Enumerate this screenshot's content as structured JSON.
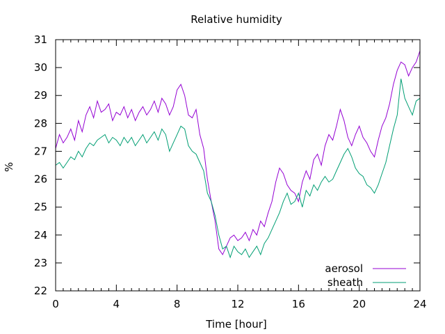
{
  "chart_data": {
    "type": "line",
    "title": "Relative humidity",
    "xlabel": "Time [hour]",
    "ylabel": "%",
    "xlim": [
      0,
      24
    ],
    "ylim": [
      22,
      31
    ],
    "xticks": [
      0,
      4,
      8,
      12,
      16,
      20,
      24
    ],
    "yticks": [
      22,
      23,
      24,
      25,
      26,
      27,
      28,
      29,
      30,
      31
    ],
    "grid": false,
    "legend_position": "bottom-right",
    "series": [
      {
        "name": "aerosol",
        "color": "#9400d3",
        "x": [
          0,
          0.25,
          0.5,
          0.75,
          1,
          1.25,
          1.5,
          1.75,
          2,
          2.25,
          2.5,
          2.75,
          3,
          3.25,
          3.5,
          3.75,
          4,
          4.25,
          4.5,
          4.75,
          5,
          5.25,
          5.5,
          5.75,
          6,
          6.25,
          6.5,
          6.75,
          7,
          7.25,
          7.5,
          7.75,
          8,
          8.25,
          8.5,
          8.75,
          9,
          9.25,
          9.5,
          9.75,
          10,
          10.25,
          10.5,
          10.75,
          11,
          11.25,
          11.5,
          11.75,
          12,
          12.25,
          12.5,
          12.75,
          13,
          13.25,
          13.5,
          13.75,
          14,
          14.25,
          14.5,
          14.75,
          15,
          15.25,
          15.5,
          15.75,
          16,
          16.25,
          16.5,
          16.75,
          17,
          17.25,
          17.5,
          17.75,
          18,
          18.25,
          18.5,
          18.75,
          19,
          19.25,
          19.5,
          19.75,
          20,
          20.25,
          20.5,
          20.75,
          21,
          21.25,
          21.5,
          21.75,
          22,
          22.25,
          22.5,
          22.75,
          23,
          23.25,
          23.5,
          23.75,
          24
        ],
        "values": [
          27.1,
          27.6,
          27.3,
          27.5,
          27.8,
          27.4,
          28.1,
          27.7,
          28.3,
          28.6,
          28.2,
          28.8,
          28.4,
          28.5,
          28.7,
          28.1,
          28.4,
          28.3,
          28.6,
          28.2,
          28.5,
          28.1,
          28.4,
          28.6,
          28.3,
          28.5,
          28.8,
          28.4,
          28.9,
          28.7,
          28.3,
          28.6,
          29.2,
          29.4,
          29.0,
          28.3,
          28.2,
          28.5,
          27.6,
          27.1,
          26.0,
          25.2,
          24.5,
          23.5,
          23.3,
          23.6,
          23.9,
          24.0,
          23.8,
          23.9,
          24.1,
          23.8,
          24.2,
          24.0,
          24.5,
          24.3,
          24.8,
          25.2,
          25.9,
          26.4,
          26.2,
          25.8,
          25.6,
          25.5,
          25.2,
          25.9,
          26.3,
          26.0,
          26.7,
          26.9,
          26.5,
          27.2,
          27.6,
          27.4,
          27.9,
          28.5,
          28.1,
          27.5,
          27.2,
          27.6,
          27.9,
          27.5,
          27.3,
          27.0,
          26.8,
          27.4,
          27.9,
          28.2,
          28.7,
          29.4,
          29.9,
          30.2,
          30.1,
          29.7,
          30.0,
          30.2,
          30.6
        ]
      },
      {
        "name": "sheath",
        "color": "#009e73",
        "x": [
          0,
          0.25,
          0.5,
          0.75,
          1,
          1.25,
          1.5,
          1.75,
          2,
          2.25,
          2.5,
          2.75,
          3,
          3.25,
          3.5,
          3.75,
          4,
          4.25,
          4.5,
          4.75,
          5,
          5.25,
          5.5,
          5.75,
          6,
          6.25,
          6.5,
          6.75,
          7,
          7.25,
          7.5,
          7.75,
          8,
          8.25,
          8.5,
          8.75,
          9,
          9.25,
          9.5,
          9.75,
          10,
          10.25,
          10.5,
          10.75,
          11,
          11.25,
          11.5,
          11.75,
          12,
          12.25,
          12.5,
          12.75,
          13,
          13.25,
          13.5,
          13.75,
          14,
          14.25,
          14.5,
          14.75,
          15,
          15.25,
          15.5,
          15.75,
          16,
          16.25,
          16.5,
          16.75,
          17,
          17.25,
          17.5,
          17.75,
          18,
          18.25,
          18.5,
          18.75,
          19,
          19.25,
          19.5,
          19.75,
          20,
          20.25,
          20.5,
          20.75,
          21,
          21.25,
          21.5,
          21.75,
          22,
          22.25,
          22.5,
          22.75,
          23,
          23.25,
          23.5,
          23.75,
          24
        ],
        "values": [
          26.5,
          26.6,
          26.4,
          26.6,
          26.8,
          26.7,
          27.0,
          26.8,
          27.1,
          27.3,
          27.2,
          27.4,
          27.5,
          27.6,
          27.3,
          27.5,
          27.4,
          27.2,
          27.5,
          27.3,
          27.5,
          27.2,
          27.4,
          27.6,
          27.3,
          27.5,
          27.7,
          27.4,
          27.8,
          27.6,
          27.0,
          27.3,
          27.6,
          27.9,
          27.8,
          27.2,
          27.0,
          26.9,
          26.6,
          26.3,
          25.5,
          25.2,
          24.7,
          24.0,
          23.5,
          23.6,
          23.2,
          23.6,
          23.4,
          23.3,
          23.5,
          23.2,
          23.4,
          23.6,
          23.3,
          23.7,
          23.9,
          24.2,
          24.5,
          24.8,
          25.2,
          25.5,
          25.1,
          25.2,
          25.5,
          25.0,
          25.6,
          25.4,
          25.8,
          25.6,
          25.9,
          26.1,
          25.9,
          26.0,
          26.3,
          26.6,
          26.9,
          27.1,
          26.8,
          26.4,
          26.2,
          26.1,
          25.8,
          25.7,
          25.5,
          25.8,
          26.2,
          26.6,
          27.2,
          27.8,
          28.3,
          29.6,
          28.9,
          28.6,
          28.3,
          28.8,
          28.9
        ]
      }
    ]
  }
}
